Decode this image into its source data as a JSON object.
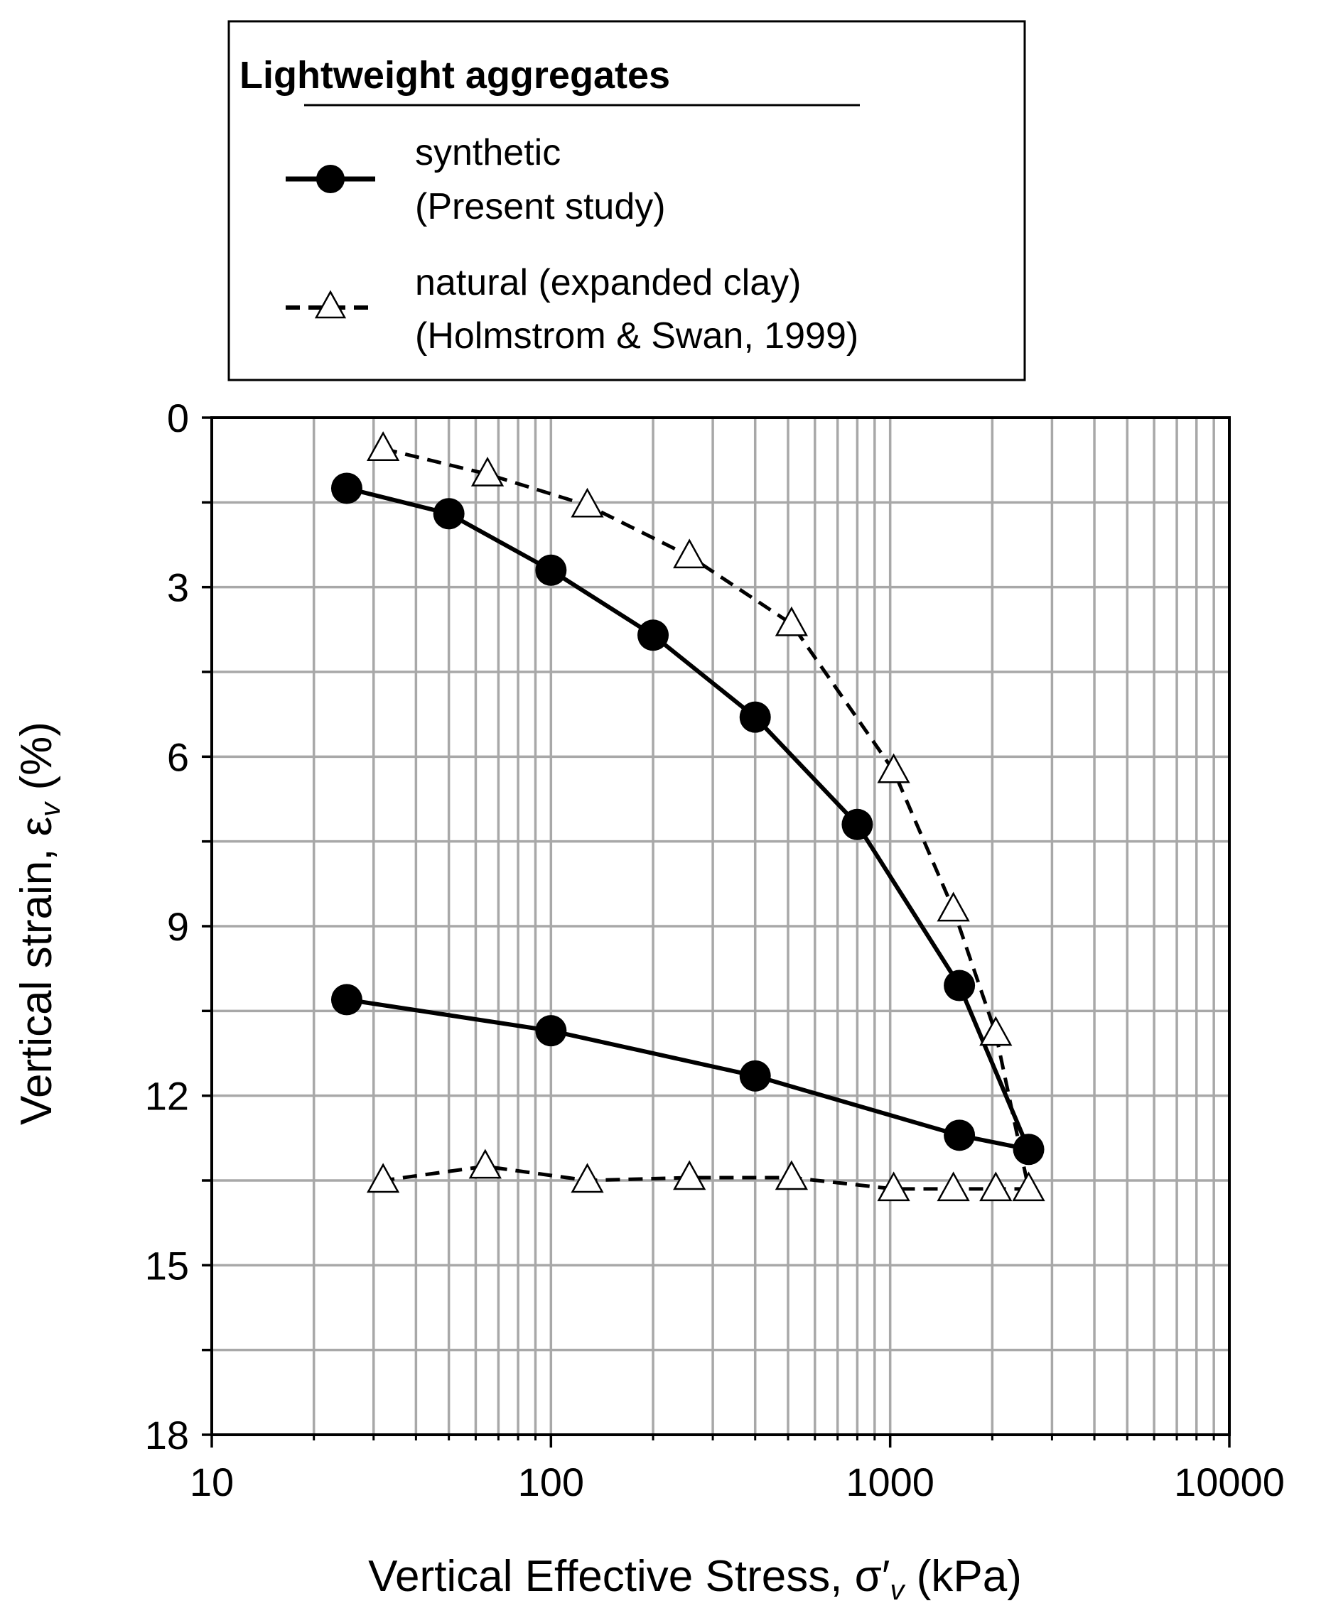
{
  "chart_data": {
    "type": "line",
    "title": "",
    "xlabel_prefix": "Vertical Effective Stress, ",
    "xlabel_symbol": "σ′",
    "xlabel_sub": "v",
    "xlabel_suffix": " (kPa)",
    "ylabel_prefix": "Vertical strain, ",
    "ylabel_symbol": "ε",
    "ylabel_sub": "v",
    "ylabel_suffix": " (%)",
    "x_scale": "log",
    "xlim": [
      10,
      10000
    ],
    "ylim": [
      0,
      18
    ],
    "y_inverted": true,
    "grid": true,
    "x_tick_labels": [
      "10",
      "100",
      "1000",
      "10000"
    ],
    "x_tick_values": [
      10,
      100,
      1000,
      10000
    ],
    "y_tick_labels": [
      "0",
      "3",
      "6",
      "9",
      "12",
      "15",
      "18"
    ],
    "y_tick_values": [
      0,
      3,
      6,
      9,
      12,
      15,
      18
    ],
    "legend": {
      "placement": "top",
      "title": "Lightweight aggregates",
      "entries": [
        {
          "line1": "synthetic",
          "line2": "(Present study)"
        },
        {
          "line1": "natural (expanded clay)",
          "line2": "(Holmstrom & Swan, 1999)"
        }
      ]
    },
    "series": [
      {
        "name": "synthetic (Present study)",
        "line": "solid",
        "marker": "filled-circle",
        "color": "#000000",
        "x": [
          25,
          50,
          100,
          200,
          400,
          800,
          1600,
          2560,
          1600,
          400,
          100,
          25
        ],
        "y": [
          1.25,
          1.7,
          2.7,
          3.85,
          5.3,
          7.2,
          10.05,
          12.95,
          12.7,
          11.65,
          10.85,
          10.3
        ]
      },
      {
        "name": "natural (expanded clay) (Holmstrom & Swan, 1999)",
        "line": "dashed",
        "marker": "open-triangle",
        "color": "#000000",
        "x": [
          32,
          65,
          128,
          256,
          512,
          1024,
          1536,
          2048,
          2560,
          2048,
          1536,
          1024,
          512,
          256,
          128,
          64,
          32
        ],
        "y": [
          0.55,
          1.0,
          1.55,
          2.45,
          3.65,
          6.25,
          8.7,
          10.9,
          13.65,
          13.65,
          13.65,
          13.65,
          13.45,
          13.45,
          13.5,
          13.25,
          13.5
        ]
      }
    ]
  }
}
